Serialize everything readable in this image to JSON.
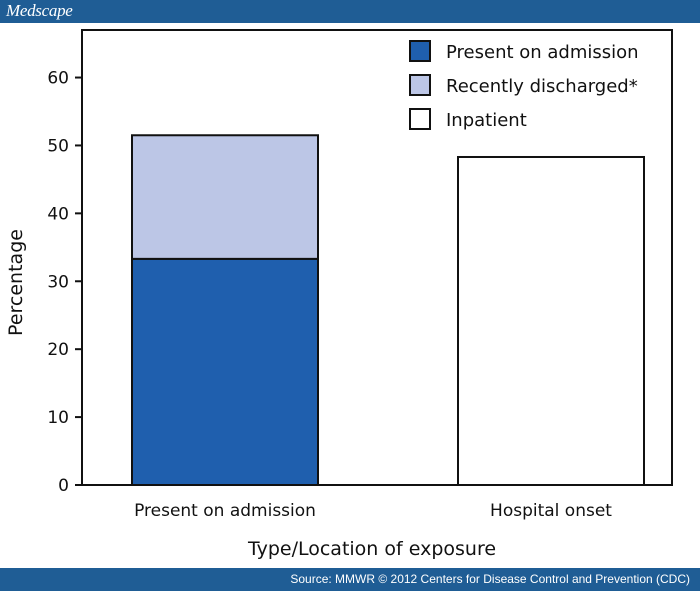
{
  "header": {
    "brand": "Medscape"
  },
  "footer": {
    "source": "Source: MMWR © 2012 Centers for Disease Control and Prevention (CDC)"
  },
  "colors": {
    "bar_blue": "#1f5fae",
    "bar_lightblue": "#bcc6e6",
    "frame": "#111111",
    "bar_white": "#ffffff"
  },
  "chart_data": {
    "type": "bar",
    "stacked": true,
    "title": "",
    "xlabel": "Type/Location of exposure",
    "ylabel": "Percentage",
    "ylim": [
      0,
      67
    ],
    "yticks": [
      0,
      10,
      20,
      30,
      40,
      50,
      60
    ],
    "categories": [
      "Present on admission",
      "Hospital onset"
    ],
    "series": [
      {
        "name": "Present on admission",
        "color": "#1f5fae",
        "values": [
          33.3,
          0
        ]
      },
      {
        "name": "Recently discharged*",
        "color": "#bcc6e6",
        "values": [
          18.2,
          0
        ]
      },
      {
        "name": "Inpatient",
        "color": "#ffffff",
        "values": [
          0,
          48.3
        ]
      }
    ],
    "legend_position": "top-right",
    "grid": false
  }
}
